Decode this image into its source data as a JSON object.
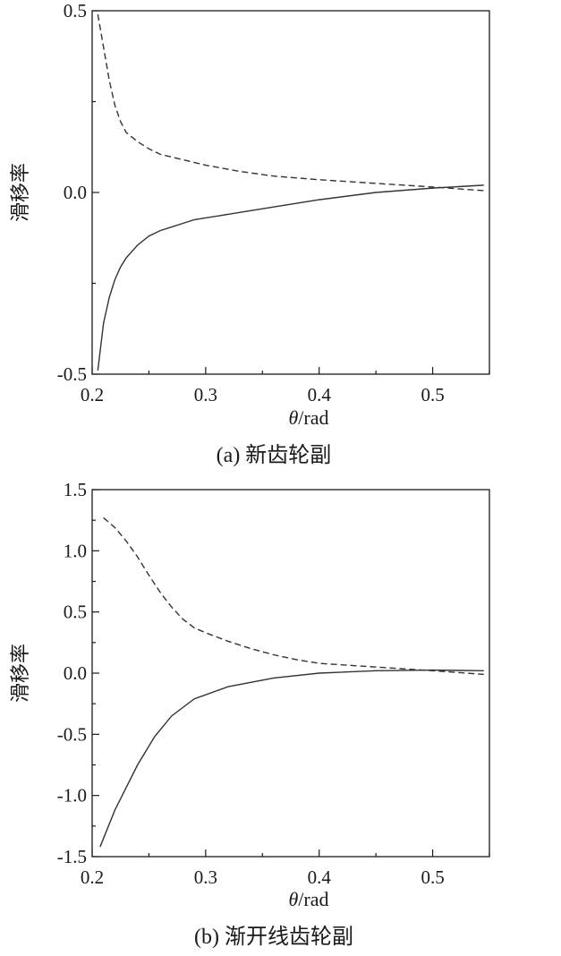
{
  "chart_data": [
    {
      "type": "line",
      "caption": "(a) 新齿轮副",
      "xlabel": "θ/rad",
      "xlabel_italic": "θ",
      "xlabel_rest": "/rad",
      "ylabel": "滑移率",
      "xlim": [
        0.2,
        0.55
      ],
      "ylim": [
        -0.5,
        0.5
      ],
      "x_ticks": [
        0.2,
        0.3,
        0.4,
        0.5
      ],
      "x_tick_labels": [
        "0.2",
        "0.3",
        "0.4",
        "0.5"
      ],
      "y_ticks": [
        -0.5,
        0.0,
        0.5
      ],
      "y_tick_labels": [
        "-0.5",
        "0.0",
        "0.5"
      ],
      "grid": false,
      "series": [
        {
          "style": "dashed",
          "color": "#333333",
          "x": [
            0.205,
            0.21,
            0.215,
            0.22,
            0.225,
            0.23,
            0.24,
            0.25,
            0.26,
            0.28,
            0.3,
            0.33,
            0.36,
            0.4,
            0.45,
            0.5,
            0.545
          ],
          "y": [
            0.49,
            0.4,
            0.31,
            0.24,
            0.195,
            0.165,
            0.14,
            0.12,
            0.105,
            0.09,
            0.075,
            0.058,
            0.045,
            0.035,
            0.025,
            0.015,
            0.005
          ]
        },
        {
          "style": "solid",
          "color": "#333333",
          "x": [
            0.205,
            0.21,
            0.215,
            0.22,
            0.225,
            0.23,
            0.24,
            0.25,
            0.26,
            0.27,
            0.28,
            0.29,
            0.31,
            0.33,
            0.36,
            0.4,
            0.45,
            0.5,
            0.545
          ],
          "y": [
            -0.49,
            -0.36,
            -0.29,
            -0.24,
            -0.205,
            -0.18,
            -0.145,
            -0.12,
            -0.105,
            -0.095,
            -0.085,
            -0.075,
            -0.065,
            -0.055,
            -0.04,
            -0.02,
            0.0,
            0.012,
            0.02
          ]
        }
      ]
    },
    {
      "type": "line",
      "caption": "(b) 渐开线齿轮副",
      "xlabel": "θ/rad",
      "xlabel_italic": "θ",
      "xlabel_rest": "/rad",
      "ylabel": "滑移率",
      "xlim": [
        0.2,
        0.55
      ],
      "ylim": [
        -1.5,
        1.5
      ],
      "x_ticks": [
        0.2,
        0.3,
        0.4,
        0.5
      ],
      "x_tick_labels": [
        "0.2",
        "0.3",
        "0.4",
        "0.5"
      ],
      "y_ticks": [
        -1.5,
        -1.0,
        -0.5,
        0.0,
        0.5,
        1.0,
        1.5
      ],
      "y_tick_labels": [
        "-1.5",
        "-1.0",
        "-0.5",
        "0.0",
        "0.5",
        "1.0",
        "1.5"
      ],
      "grid": false,
      "series": [
        {
          "style": "dashed",
          "color": "#333333",
          "x": [
            0.21,
            0.22,
            0.23,
            0.24,
            0.25,
            0.26,
            0.27,
            0.28,
            0.29,
            0.3,
            0.32,
            0.34,
            0.36,
            0.38,
            0.4,
            0.45,
            0.5,
            0.545
          ],
          "y": [
            1.27,
            1.19,
            1.08,
            0.95,
            0.8,
            0.66,
            0.54,
            0.44,
            0.37,
            0.33,
            0.26,
            0.2,
            0.15,
            0.11,
            0.08,
            0.05,
            0.02,
            -0.01
          ]
        },
        {
          "style": "solid",
          "color": "#333333",
          "x": [
            0.207,
            0.22,
            0.24,
            0.255,
            0.27,
            0.29,
            0.32,
            0.36,
            0.4,
            0.45,
            0.5,
            0.545
          ],
          "y": [
            -1.42,
            -1.12,
            -0.75,
            -0.52,
            -0.35,
            -0.21,
            -0.11,
            -0.04,
            0.0,
            0.02,
            0.025,
            0.02
          ]
        }
      ]
    }
  ]
}
